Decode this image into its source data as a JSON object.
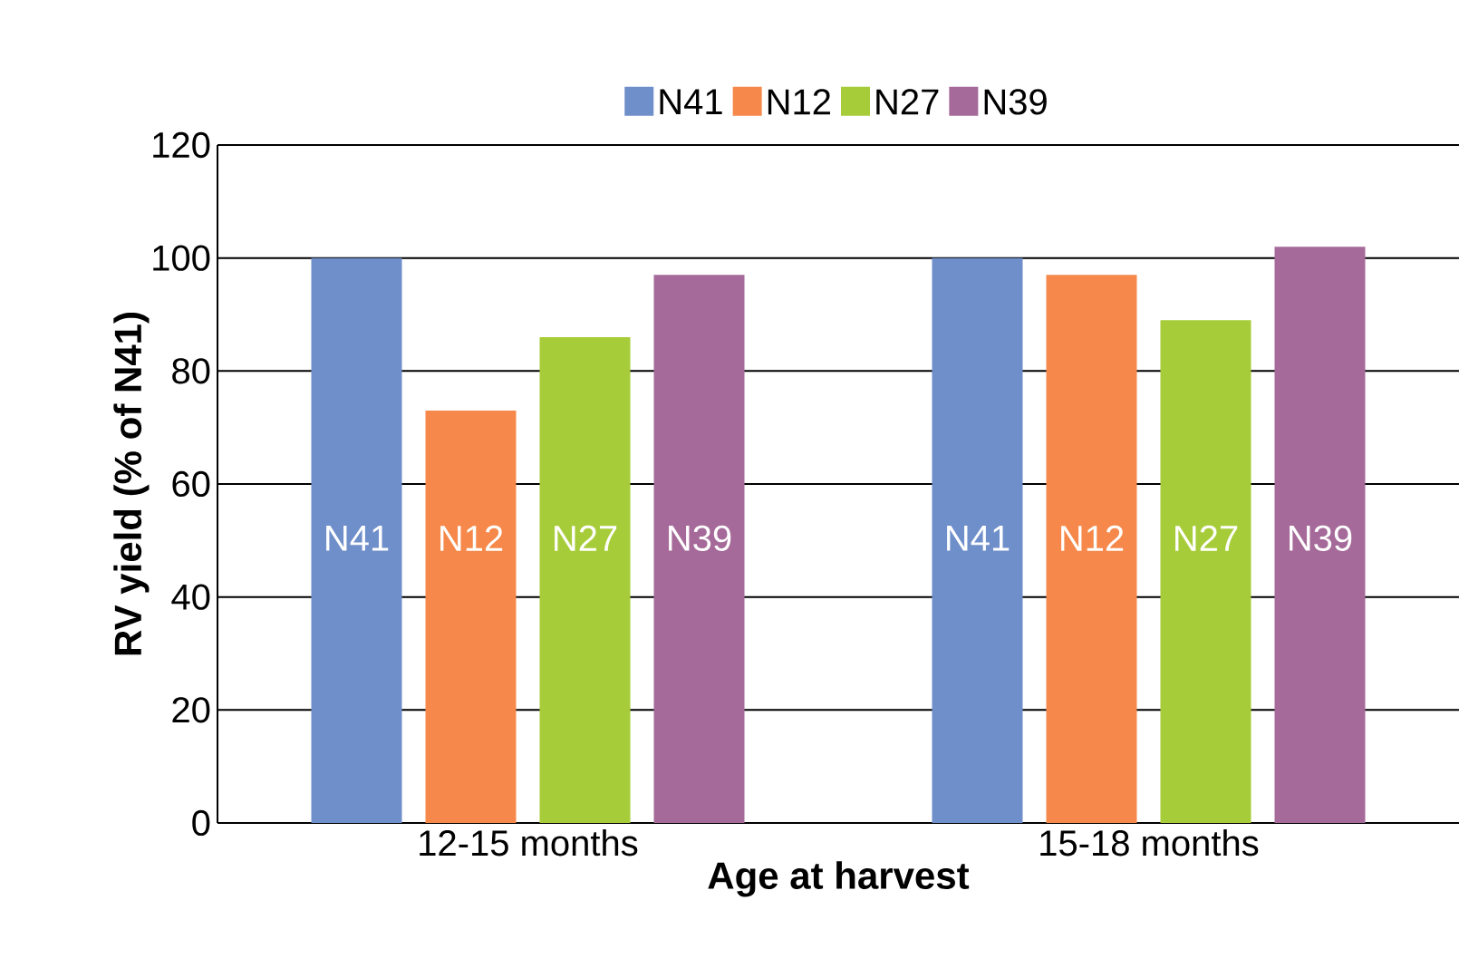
{
  "chart_data": {
    "type": "bar",
    "xlabel": "Age at harvest",
    "ylabel": "RV yield (% of N41)",
    "categories": [
      "12-15 months",
      "15-18 months"
    ],
    "series": [
      {
        "name": "N41",
        "color": "#6f8fca",
        "values": [
          100,
          100
        ],
        "value_labels": [
          "N41",
          "N41"
        ]
      },
      {
        "name": "N12",
        "color": "#f5884a",
        "values": [
          73,
          97
        ],
        "value_labels": [
          "N12",
          "N12"
        ]
      },
      {
        "name": "N27",
        "color": "#a7cc3a",
        "values": [
          86,
          89
        ],
        "value_labels": [
          "N27",
          "N27"
        ]
      },
      {
        "name": "N39",
        "color": "#a56a99",
        "values": [
          97,
          102
        ],
        "value_labels": [
          "N39",
          "N39"
        ]
      }
    ],
    "ylim": [
      0,
      120
    ],
    "yticks": [
      0,
      20,
      40,
      60,
      80,
      100,
      120
    ],
    "grid": "y",
    "legend": "top"
  }
}
